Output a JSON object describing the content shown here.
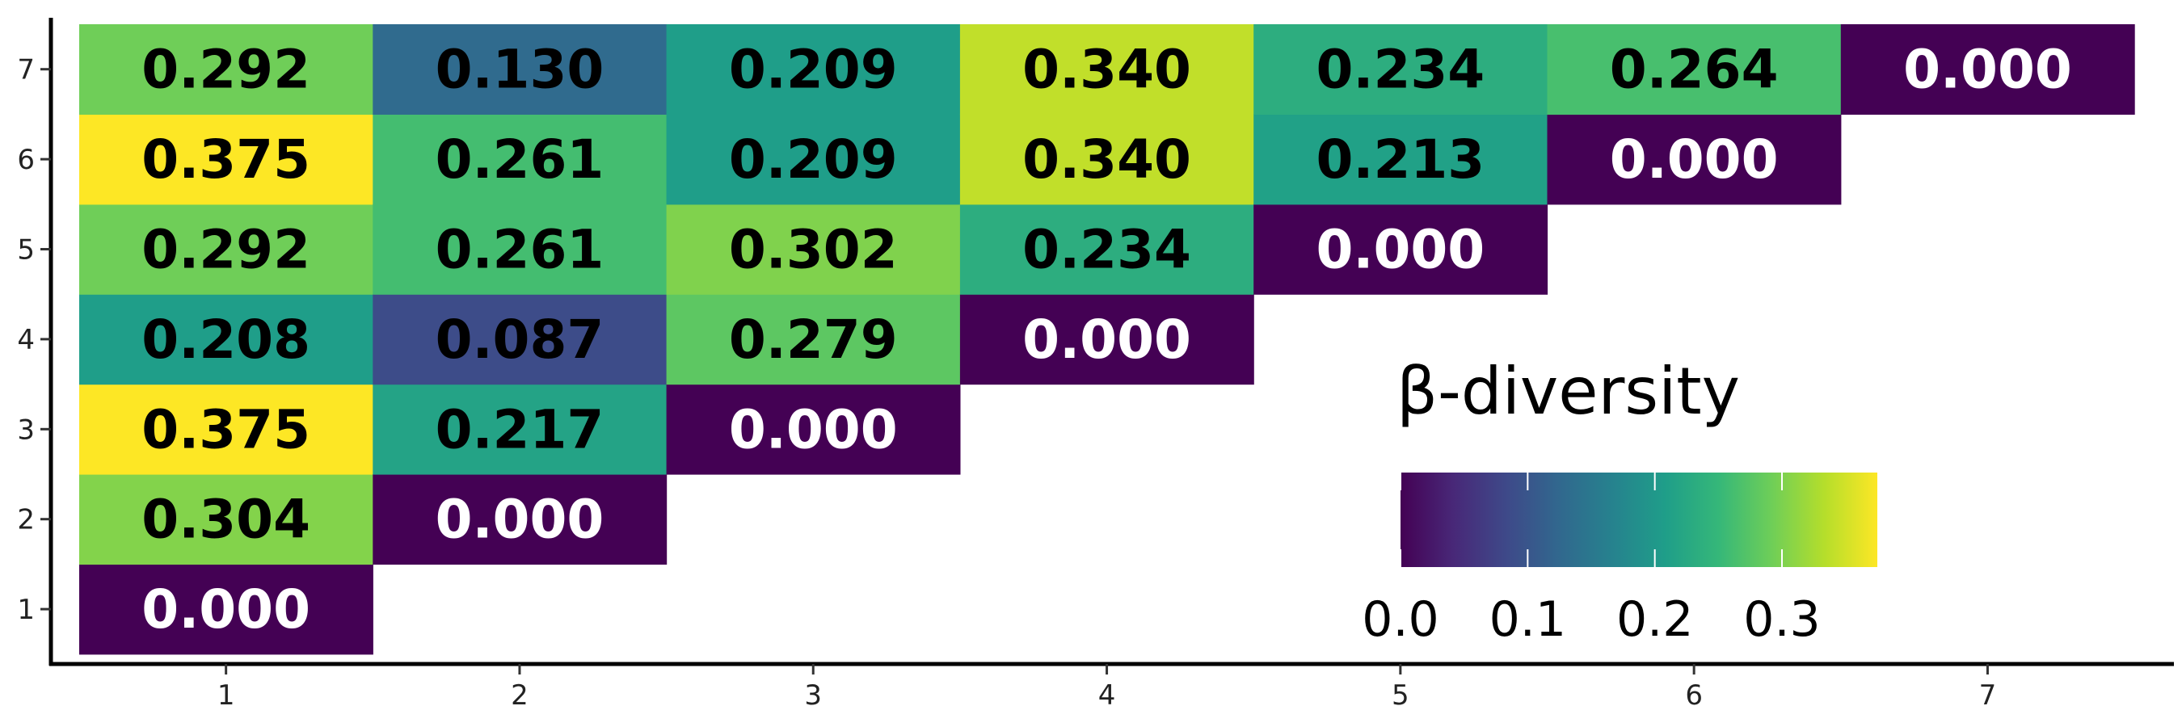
{
  "chart_data": {
    "type": "heatmap",
    "title": "",
    "xlabel": "",
    "ylabel": "",
    "x_categories": [
      "1",
      "2",
      "3",
      "4",
      "5",
      "6",
      "7"
    ],
    "y_categories": [
      "1",
      "2",
      "3",
      "4",
      "5",
      "6",
      "7"
    ],
    "cells": [
      {
        "x": "1",
        "y": "1",
        "value": 0.0,
        "label": "0.000"
      },
      {
        "x": "1",
        "y": "2",
        "value": 0.304,
        "label": "0.304"
      },
      {
        "x": "1",
        "y": "3",
        "value": 0.375,
        "label": "0.375"
      },
      {
        "x": "1",
        "y": "4",
        "value": 0.208,
        "label": "0.208"
      },
      {
        "x": "1",
        "y": "5",
        "value": 0.292,
        "label": "0.292"
      },
      {
        "x": "1",
        "y": "6",
        "value": 0.375,
        "label": "0.375"
      },
      {
        "x": "1",
        "y": "7",
        "value": 0.292,
        "label": "0.292"
      },
      {
        "x": "2",
        "y": "2",
        "value": 0.0,
        "label": "0.000"
      },
      {
        "x": "2",
        "y": "3",
        "value": 0.217,
        "label": "0.217"
      },
      {
        "x": "2",
        "y": "4",
        "value": 0.087,
        "label": "0.087"
      },
      {
        "x": "2",
        "y": "5",
        "value": 0.261,
        "label": "0.261"
      },
      {
        "x": "2",
        "y": "6",
        "value": 0.261,
        "label": "0.261"
      },
      {
        "x": "2",
        "y": "7",
        "value": 0.13,
        "label": "0.130"
      },
      {
        "x": "3",
        "y": "3",
        "value": 0.0,
        "label": "0.000"
      },
      {
        "x": "3",
        "y": "4",
        "value": 0.279,
        "label": "0.279"
      },
      {
        "x": "3",
        "y": "5",
        "value": 0.302,
        "label": "0.302"
      },
      {
        "x": "3",
        "y": "6",
        "value": 0.209,
        "label": "0.209"
      },
      {
        "x": "3",
        "y": "7",
        "value": 0.209,
        "label": "0.209"
      },
      {
        "x": "4",
        "y": "4",
        "value": 0.0,
        "label": "0.000"
      },
      {
        "x": "4",
        "y": "5",
        "value": 0.234,
        "label": "0.234"
      },
      {
        "x": "4",
        "y": "6",
        "value": 0.34,
        "label": "0.340"
      },
      {
        "x": "4",
        "y": "7",
        "value": 0.34,
        "label": "0.340"
      },
      {
        "x": "5",
        "y": "5",
        "value": 0.0,
        "label": "0.000"
      },
      {
        "x": "5",
        "y": "6",
        "value": 0.213,
        "label": "0.213"
      },
      {
        "x": "5",
        "y": "7",
        "value": 0.234,
        "label": "0.234"
      },
      {
        "x": "6",
        "y": "6",
        "value": 0.0,
        "label": "0.000"
      },
      {
        "x": "6",
        "y": "7",
        "value": 0.264,
        "label": "0.264"
      },
      {
        "x": "7",
        "y": "7",
        "value": 0.0,
        "label": "0.000"
      }
    ],
    "color_scale": {
      "name": "viridis",
      "min": 0.0,
      "max": 0.375,
      "stops": [
        "#440154",
        "#482878",
        "#3e4989",
        "#31688e",
        "#26828e",
        "#1f9e89",
        "#35b779",
        "#6ece58",
        "#b5de2b",
        "#fde725"
      ]
    },
    "legend": {
      "title": "β-diversity",
      "ticks": [
        {
          "value": 0.0,
          "label": "0.0"
        },
        {
          "value": 0.1,
          "label": "0.1"
        },
        {
          "value": 0.2,
          "label": "0.2"
        },
        {
          "value": 0.3,
          "label": "0.3"
        }
      ],
      "placement": "inside-bottom-right"
    },
    "grid": false
  }
}
